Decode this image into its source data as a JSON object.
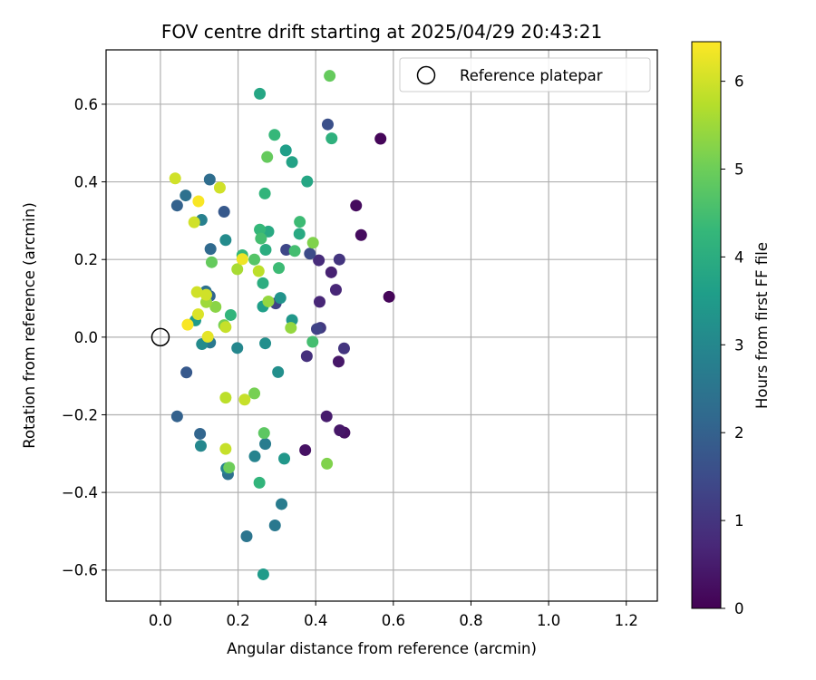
{
  "chart_data": {
    "type": "scatter",
    "title": "FOV centre drift starting at 2025/04/29 20:43:21",
    "xlabel": "Angular distance from reference (arcmin)",
    "ylabel": "Rotation from reference (arcmin)",
    "xlim": [
      -0.14,
      1.28
    ],
    "ylim": [
      -0.68,
      0.74
    ],
    "xticks": [
      0.0,
      0.2,
      0.4,
      0.6,
      0.8,
      1.0,
      1.2
    ],
    "xtick_labels": [
      "0.0",
      "0.2",
      "0.4",
      "0.6",
      "0.8",
      "1.0",
      "1.2"
    ],
    "yticks": [
      -0.6,
      -0.4,
      -0.2,
      0.0,
      0.2,
      0.4,
      0.6
    ],
    "ytick_labels": [
      "−0.6",
      "−0.4",
      "−0.2",
      "0.0",
      "0.2",
      "0.4",
      "0.6"
    ],
    "grid": true,
    "legend": {
      "placement": "top-right",
      "label": "Reference platepar"
    },
    "reference_point": {
      "x": 0.0,
      "y": 0.0
    },
    "colorbar": {
      "label": "Hours from first FF file",
      "colormap": "viridis",
      "range": [
        0,
        6.45
      ],
      "ticks": [
        0,
        1,
        2,
        3,
        4,
        5,
        6
      ],
      "tick_labels": [
        "0",
        "1",
        "2",
        "3",
        "4",
        "5",
        "6"
      ],
      "colors": [
        "#440154",
        "#482878",
        "#3e4989",
        "#31688e",
        "#26828e",
        "#1f9e89",
        "#35b779",
        "#6ece58",
        "#b5de2b",
        "#fde725"
      ]
    },
    "points": [
      {
        "x": 0.567,
        "y": 0.511,
        "h": 0.1
      },
      {
        "x": 0.589,
        "y": 0.104,
        "h": 0.1
      },
      {
        "x": 0.517,
        "y": 0.263,
        "h": 0.2
      },
      {
        "x": 0.504,
        "y": 0.339,
        "h": 0.2
      },
      {
        "x": 0.373,
        "y": -0.291,
        "h": 0.3
      },
      {
        "x": 0.474,
        "y": -0.246,
        "h": 0.3
      },
      {
        "x": 0.459,
        "y": -0.063,
        "h": 0.4
      },
      {
        "x": 0.462,
        "y": -0.24,
        "h": 0.4
      },
      {
        "x": 0.428,
        "y": -0.204,
        "h": 0.5
      },
      {
        "x": 0.44,
        "y": 0.167,
        "h": 0.6
      },
      {
        "x": 0.452,
        "y": 0.122,
        "h": 0.7
      },
      {
        "x": 0.41,
        "y": 0.091,
        "h": 0.7
      },
      {
        "x": 0.408,
        "y": 0.198,
        "h": 0.8
      },
      {
        "x": 0.377,
        "y": -0.049,
        "h": 0.9
      },
      {
        "x": 0.473,
        "y": -0.029,
        "h": 1.0
      },
      {
        "x": 0.461,
        "y": 0.2,
        "h": 1.0
      },
      {
        "x": 0.412,
        "y": 0.024,
        "h": 1.1
      },
      {
        "x": 0.403,
        "y": 0.021,
        "h": 1.3
      },
      {
        "x": 0.297,
        "y": 0.087,
        "h": 1.3
      },
      {
        "x": 0.324,
        "y": 0.225,
        "h": 1.4
      },
      {
        "x": 0.385,
        "y": 0.215,
        "h": 1.5
      },
      {
        "x": 0.431,
        "y": 0.548,
        "h": 1.6
      },
      {
        "x": 0.067,
        "y": -0.091,
        "h": 1.8
      },
      {
        "x": 0.164,
        "y": 0.323,
        "h": 1.8
      },
      {
        "x": 0.043,
        "y": 0.339,
        "h": 2.0
      },
      {
        "x": 0.043,
        "y": -0.204,
        "h": 2.0
      },
      {
        "x": 0.102,
        "y": -0.249,
        "h": 2.1
      },
      {
        "x": 0.127,
        "y": 0.106,
        "h": 2.1
      },
      {
        "x": 0.129,
        "y": 0.227,
        "h": 2.2
      },
      {
        "x": 0.127,
        "y": 0.406,
        "h": 2.3
      },
      {
        "x": 0.065,
        "y": 0.365,
        "h": 2.4
      },
      {
        "x": 0.117,
        "y": 0.118,
        "h": 2.4
      },
      {
        "x": 0.174,
        "y": -0.353,
        "h": 2.4
      },
      {
        "x": 0.222,
        "y": -0.513,
        "h": 2.5
      },
      {
        "x": 0.295,
        "y": -0.485,
        "h": 2.6
      },
      {
        "x": 0.312,
        "y": -0.43,
        "h": 2.7
      },
      {
        "x": 0.128,
        "y": -0.014,
        "h": 2.6
      },
      {
        "x": 0.27,
        "y": -0.275,
        "h": 2.7
      },
      {
        "x": 0.106,
        "y": 0.302,
        "h": 2.8
      },
      {
        "x": 0.17,
        "y": -0.338,
        "h": 2.9
      },
      {
        "x": 0.243,
        "y": -0.307,
        "h": 2.9
      },
      {
        "x": 0.198,
        "y": -0.028,
        "h": 3.0
      },
      {
        "x": 0.104,
        "y": -0.28,
        "h": 3.0
      },
      {
        "x": 0.168,
        "y": 0.25,
        "h": 3.1
      },
      {
        "x": 0.107,
        "y": -0.018,
        "h": 3.1
      },
      {
        "x": 0.27,
        "y": -0.016,
        "h": 3.2
      },
      {
        "x": 0.303,
        "y": -0.09,
        "h": 3.2
      },
      {
        "x": 0.309,
        "y": 0.101,
        "h": 3.3
      },
      {
        "x": 0.319,
        "y": -0.313,
        "h": 3.4
      },
      {
        "x": 0.339,
        "y": 0.044,
        "h": 3.4
      },
      {
        "x": 0.265,
        "y": -0.611,
        "h": 3.5
      },
      {
        "x": 0.09,
        "y": 0.043,
        "h": 3.5
      },
      {
        "x": 0.264,
        "y": 0.079,
        "h": 3.6
      },
      {
        "x": 0.323,
        "y": 0.481,
        "h": 3.6
      },
      {
        "x": 0.339,
        "y": 0.451,
        "h": 3.7
      },
      {
        "x": 0.378,
        "y": 0.401,
        "h": 3.8
      },
      {
        "x": 0.256,
        "y": 0.627,
        "h": 3.8
      },
      {
        "x": 0.358,
        "y": 0.266,
        "h": 3.9
      },
      {
        "x": 0.278,
        "y": 0.272,
        "h": 3.9
      },
      {
        "x": 0.271,
        "y": 0.225,
        "h": 4.0
      },
      {
        "x": 0.264,
        "y": 0.139,
        "h": 4.0
      },
      {
        "x": 0.441,
        "y": 0.512,
        "h": 4.1
      },
      {
        "x": 0.269,
        "y": 0.37,
        "h": 4.2
      },
      {
        "x": 0.255,
        "y": -0.375,
        "h": 4.2
      },
      {
        "x": 0.181,
        "y": 0.057,
        "h": 4.2
      },
      {
        "x": 0.294,
        "y": 0.521,
        "h": 4.3
      },
      {
        "x": 0.256,
        "y": 0.277,
        "h": 4.3
      },
      {
        "x": 0.211,
        "y": 0.211,
        "h": 4.3
      },
      {
        "x": 0.359,
        "y": 0.297,
        "h": 4.4
      },
      {
        "x": 0.305,
        "y": 0.178,
        "h": 4.4
      },
      {
        "x": 0.259,
        "y": 0.254,
        "h": 4.5
      },
      {
        "x": 0.346,
        "y": 0.222,
        "h": 4.5
      },
      {
        "x": 0.392,
        "y": -0.012,
        "h": 4.5
      },
      {
        "x": 0.242,
        "y": 0.2,
        "h": 4.7
      },
      {
        "x": 0.267,
        "y": -0.247,
        "h": 4.8
      },
      {
        "x": 0.436,
        "y": 0.673,
        "h": 4.9
      },
      {
        "x": 0.275,
        "y": 0.464,
        "h": 4.9
      },
      {
        "x": 0.132,
        "y": 0.193,
        "h": 4.9
      },
      {
        "x": 0.177,
        "y": -0.336,
        "h": 5.0
      },
      {
        "x": 0.242,
        "y": -0.145,
        "h": 5.1
      },
      {
        "x": 0.164,
        "y": 0.031,
        "h": 5.1
      },
      {
        "x": 0.429,
        "y": -0.326,
        "h": 5.2
      },
      {
        "x": 0.393,
        "y": 0.243,
        "h": 5.2
      },
      {
        "x": 0.142,
        "y": 0.078,
        "h": 5.3
      },
      {
        "x": 0.278,
        "y": 0.092,
        "h": 5.4
      },
      {
        "x": 0.336,
        "y": 0.024,
        "h": 5.4
      },
      {
        "x": 0.118,
        "y": 0.09,
        "h": 5.5
      },
      {
        "x": 0.198,
        "y": 0.175,
        "h": 5.6
      },
      {
        "x": 0.253,
        "y": 0.17,
        "h": 5.8
      },
      {
        "x": 0.168,
        "y": -0.156,
        "h": 5.8
      },
      {
        "x": 0.217,
        "y": -0.161,
        "h": 5.9
      },
      {
        "x": 0.168,
        "y": 0.026,
        "h": 5.9
      },
      {
        "x": 0.168,
        "y": -0.288,
        "h": 5.9
      },
      {
        "x": 0.094,
        "y": 0.116,
        "h": 6.0
      },
      {
        "x": 0.118,
        "y": 0.109,
        "h": 6.0
      },
      {
        "x": 0.087,
        "y": 0.296,
        "h": 6.0
      },
      {
        "x": 0.038,
        "y": 0.409,
        "h": 6.0
      },
      {
        "x": 0.153,
        "y": 0.385,
        "h": 6.0
      },
      {
        "x": 0.097,
        "y": 0.059,
        "h": 6.1
      },
      {
        "x": 0.122,
        "y": 0.001,
        "h": 6.2
      },
      {
        "x": 0.211,
        "y": 0.201,
        "h": 6.3
      },
      {
        "x": 0.07,
        "y": 0.032,
        "h": 6.4
      },
      {
        "x": 0.098,
        "y": 0.35,
        "h": 6.4
      }
    ]
  }
}
